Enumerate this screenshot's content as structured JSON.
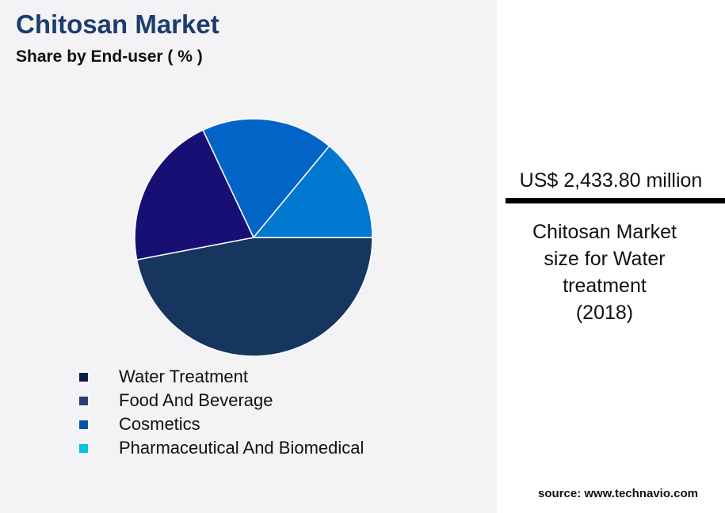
{
  "chart_data": {
    "type": "pie",
    "title": "Chitosan Market",
    "subtitle": "Share by End-user ( % )",
    "categories": [
      "Water Treatment",
      "Food And Beverage",
      "Cosmetics",
      "Pharmaceutical And Biomedical"
    ],
    "values": [
      47,
      21,
      18,
      14
    ],
    "slice_colors": [
      "#16365f",
      "#170f73",
      "#0364c8",
      "#0078cf"
    ],
    "legend_colors": [
      "#0b1e45",
      "#2a3d70",
      "#0355a8",
      "#00c0e6"
    ],
    "legend_placement": "bottom"
  },
  "highlight": {
    "value": "US$ 2,433.80 million",
    "caption_lines": [
      "Chitosan Market",
      "size for Water",
      "treatment",
      "(2018)"
    ]
  },
  "source": "source: www.technavio.com"
}
